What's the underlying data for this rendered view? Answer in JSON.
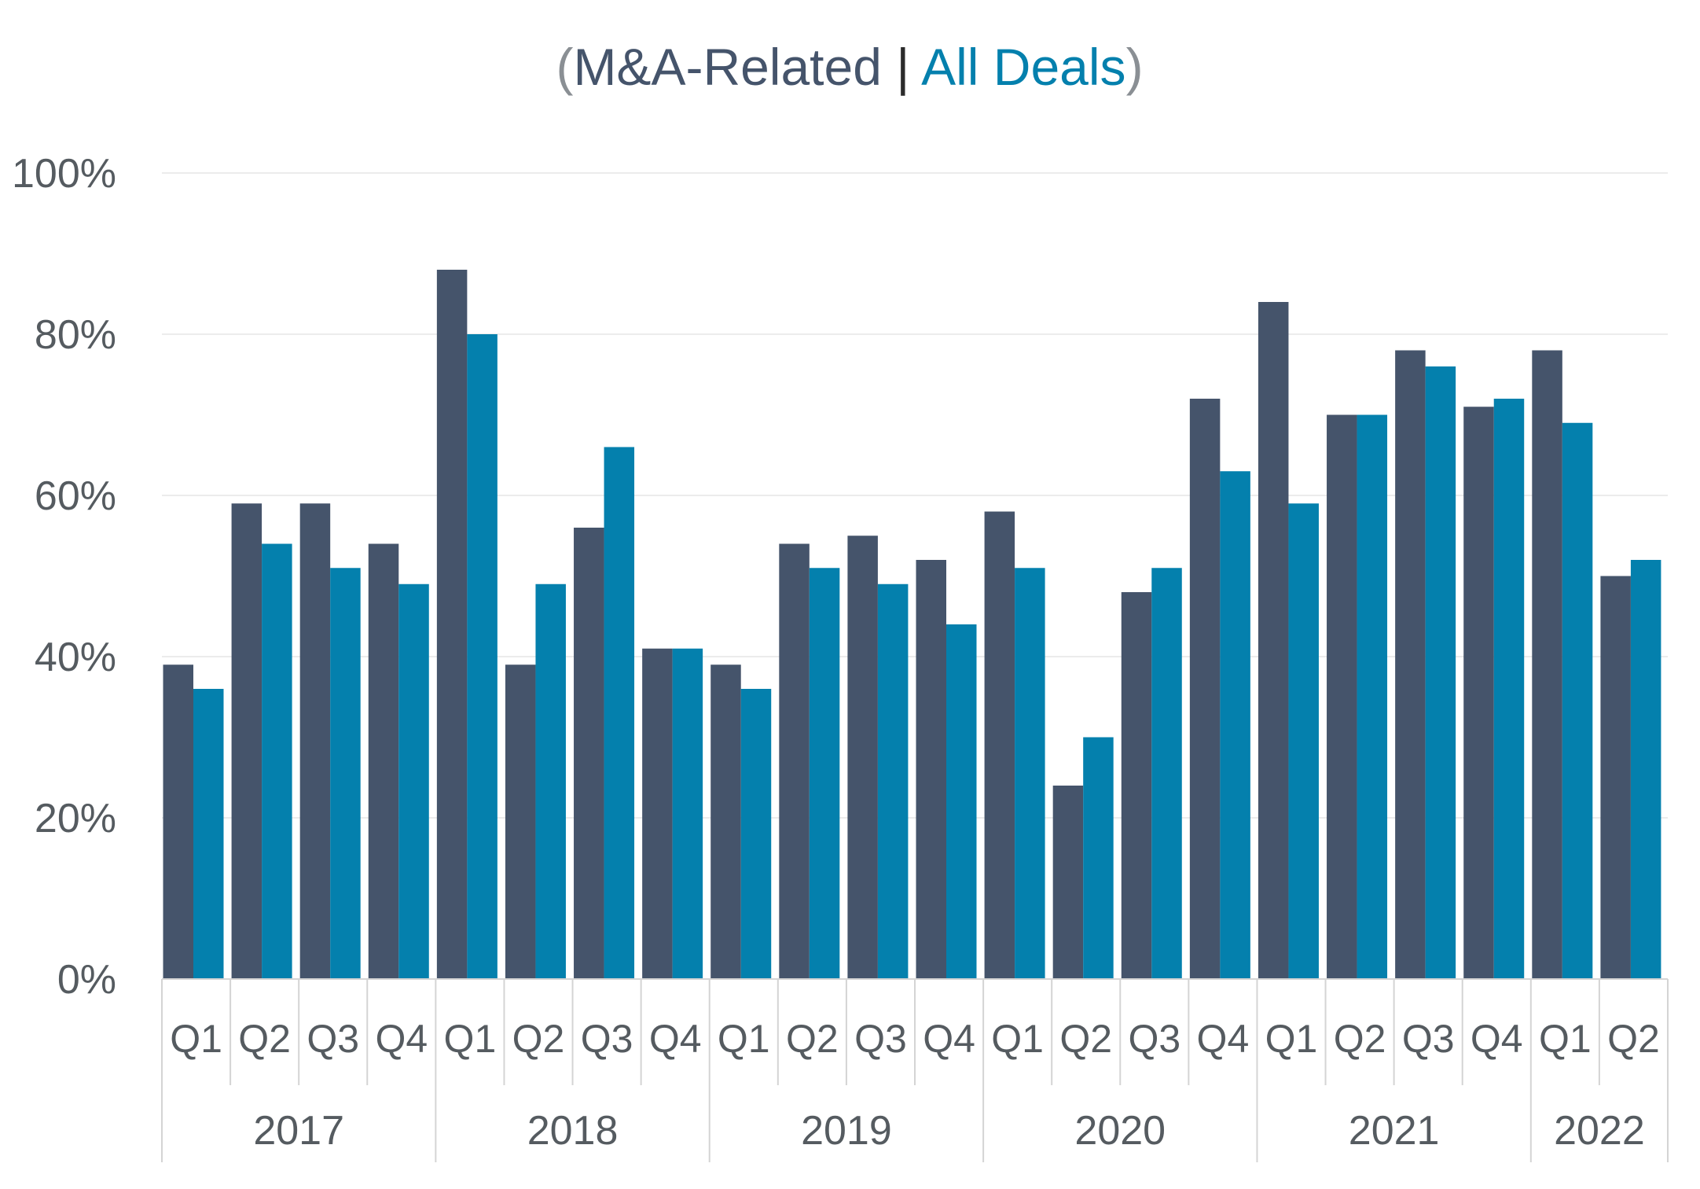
{
  "chart_data": {
    "type": "bar",
    "title": {
      "open_paren": "(",
      "series1": "M&A-Related",
      "separator": " | ",
      "series2": "All Deals",
      "close_paren": ")"
    },
    "ylim": [
      0,
      100
    ],
    "yticks": [
      "0%",
      "20%",
      "40%",
      "60%",
      "80%",
      "100%"
    ],
    "ytick_values": [
      0,
      20,
      40,
      60,
      80,
      100
    ],
    "grid": true,
    "legend": "title",
    "categories": [
      "Q1",
      "Q2",
      "Q3",
      "Q4",
      "Q1",
      "Q2",
      "Q3",
      "Q4",
      "Q1",
      "Q2",
      "Q3",
      "Q4",
      "Q1",
      "Q2",
      "Q3",
      "Q4",
      "Q1",
      "Q2",
      "Q3",
      "Q4",
      "Q1",
      "Q2"
    ],
    "years": [
      {
        "label": "2017",
        "quarters": 4
      },
      {
        "label": "2018",
        "quarters": 4
      },
      {
        "label": "2019",
        "quarters": 4
      },
      {
        "label": "2020",
        "quarters": 4
      },
      {
        "label": "2021",
        "quarters": 4
      },
      {
        "label": "2022",
        "quarters": 2
      }
    ],
    "series": [
      {
        "name": "M&A-Related",
        "color": "#45546b",
        "values": [
          39,
          59,
          59,
          54,
          88,
          39,
          56,
          41,
          39,
          54,
          55,
          52,
          58,
          24,
          48,
          72,
          84,
          70,
          78,
          71,
          78,
          50
        ]
      },
      {
        "name": "All Deals",
        "color": "#0480ad",
        "values": [
          36,
          54,
          51,
          49,
          80,
          49,
          66,
          41,
          36,
          51,
          49,
          44,
          51,
          30,
          51,
          63,
          59,
          70,
          76,
          72,
          69,
          52
        ]
      }
    ],
    "colors": {
      "paren": "#8a8f94",
      "separator": "#2b2b2b",
      "grid": "#ececec",
      "axis": "#d4d4d4"
    }
  }
}
